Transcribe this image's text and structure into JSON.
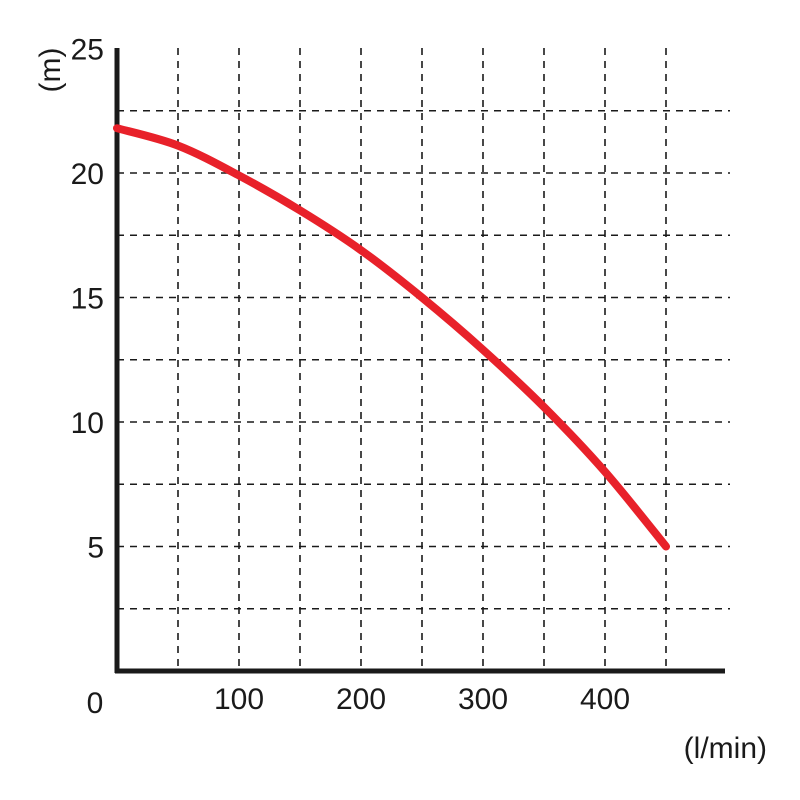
{
  "chart_data": {
    "type": "line",
    "title": "",
    "xlabel": "(l/min)",
    "ylabel": "(m)",
    "origin_label": "0",
    "xlim": [
      0,
      500
    ],
    "ylim": [
      0,
      25
    ],
    "x_tick_labels": [
      "100",
      "200",
      "300",
      "400"
    ],
    "x_tick_values": [
      100,
      200,
      300,
      400
    ],
    "y_tick_labels": [
      "5",
      "10",
      "15",
      "20",
      "25"
    ],
    "y_tick_values": [
      5,
      10,
      15,
      20,
      25
    ],
    "x_grid_values": [
      50,
      100,
      150,
      200,
      250,
      300,
      350,
      400,
      450
    ],
    "y_grid_values": [
      2.5,
      5,
      7.5,
      10,
      12.5,
      15,
      17.5,
      20,
      22.5
    ],
    "grid": true,
    "series": [
      {
        "color": "#e8212a",
        "x": [
          0,
          50,
          100,
          150,
          200,
          250,
          300,
          350,
          400,
          450
        ],
        "y": [
          21.8,
          21.1,
          19.9,
          18.5,
          16.9,
          15.0,
          12.9,
          10.6,
          8.0,
          5.0
        ]
      }
    ]
  }
}
